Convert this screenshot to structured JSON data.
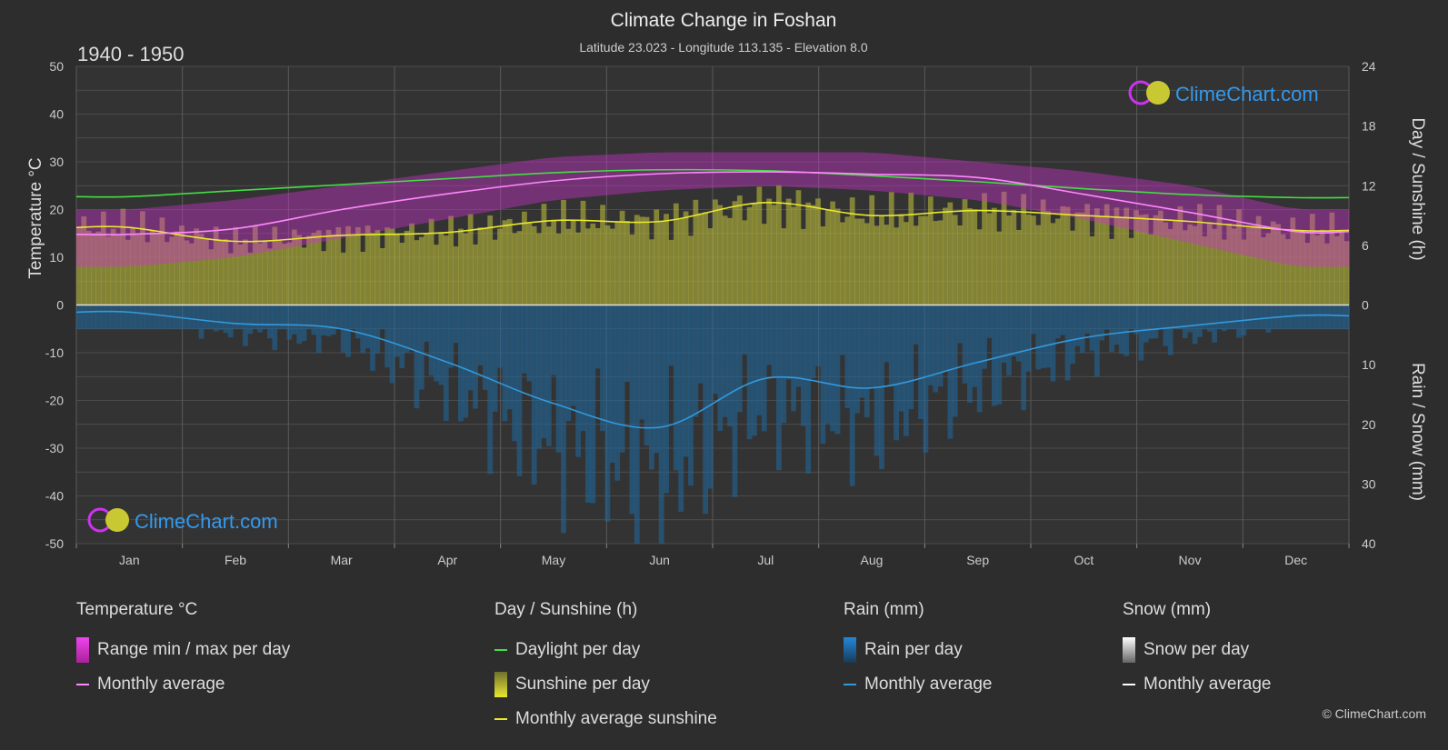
{
  "header": {
    "title": "Climate Change in Foshan",
    "subtitle": "Latitude 23.023 - Longitude 113.135 - Elevation 8.0",
    "period": "1940 - 1950"
  },
  "brand": {
    "logo_text": "ClimeChart.com",
    "copyright": "© ClimeChart.com"
  },
  "axes": {
    "left_label": "Temperature °C",
    "right_top_label": "Day / Sunshine (h)",
    "right_bottom_label": "Rain / Snow (mm)"
  },
  "legend": {
    "temperature": {
      "title": "Temperature °C",
      "range": "Range min / max per day",
      "avg": "Monthly average"
    },
    "sun": {
      "title": "Day / Sunshine (h)",
      "daylight": "Daylight per day",
      "sunshine": "Sunshine per day",
      "avg": "Monthly average sunshine"
    },
    "rain": {
      "title": "Rain (mm)",
      "per_day": "Rain per day",
      "avg": "Monthly average"
    },
    "snow": {
      "title": "Snow (mm)",
      "per_day": "Snow per day",
      "avg": "Monthly average"
    }
  },
  "colors": {
    "background": "#2d2d2d",
    "grid": "#555555",
    "daylight": "#44dd44",
    "sunshine_fill": "#b5b53a",
    "sunshine_avg": "#e8e830",
    "temp_range": "#cc33cc",
    "temp_avg": "#ff88ff",
    "rain_fill": "#1f6aa0",
    "rain_avg": "#3399dd",
    "snow_avg": "#ffffff",
    "logo_blue": "#3399ee"
  },
  "chart_data": {
    "type": "line",
    "categories": [
      "Jan",
      "Feb",
      "Mar",
      "Apr",
      "May",
      "Jun",
      "Jul",
      "Aug",
      "Sep",
      "Oct",
      "Nov",
      "Dec"
    ],
    "y_left": {
      "label": "Temperature °C",
      "min": -50,
      "max": 50,
      "ticks": [
        50,
        40,
        30,
        20,
        10,
        0,
        -10,
        -20,
        -30,
        -40,
        -50
      ]
    },
    "y_right_top": {
      "label": "Day / Sunshine (h)",
      "min": 0,
      "max": 24,
      "ticks": [
        24,
        18,
        12,
        6,
        0
      ]
    },
    "y_right_bottom": {
      "label": "Rain / Snow (mm)",
      "min": 0,
      "max": 40,
      "ticks": [
        0,
        10,
        20,
        30,
        40
      ]
    },
    "series": [
      {
        "name": "Daylight per day",
        "unit": "h",
        "values": [
          10.9,
          11.5,
          12.1,
          12.7,
          13.3,
          13.6,
          13.5,
          13.0,
          12.4,
          11.7,
          11.1,
          10.8
        ]
      },
      {
        "name": "Monthly average sunshine",
        "unit": "h",
        "values": [
          7.8,
          6.4,
          7.0,
          7.3,
          8.5,
          8.4,
          10.3,
          9.0,
          9.5,
          9.0,
          8.4,
          7.5
        ]
      },
      {
        "name": "Temperature monthly average",
        "unit": "°C",
        "values": [
          14.8,
          16.0,
          20.0,
          23.3,
          26.0,
          27.5,
          27.9,
          27.4,
          26.7,
          23.2,
          19.4,
          15.4
        ]
      },
      {
        "name": "Temperature daily max (avg)",
        "unit": "°C",
        "values": [
          20,
          22,
          25,
          28,
          31,
          32,
          32,
          32,
          30,
          28,
          25,
          20
        ]
      },
      {
        "name": "Temperature daily min (avg)",
        "unit": "°C",
        "values": [
          8,
          10,
          14,
          18,
          22,
          24,
          25,
          24,
          22,
          18,
          13,
          8
        ]
      },
      {
        "name": "Rain monthly average",
        "unit": "mm",
        "values": [
          1.2,
          3.1,
          4.0,
          9.6,
          16.5,
          20.5,
          12.3,
          13.9,
          9.6,
          5.5,
          3.5,
          1.8
        ]
      },
      {
        "name": "Snow monthly average",
        "unit": "mm",
        "values": [
          0,
          0,
          0,
          0,
          0,
          0,
          0,
          0,
          0,
          0,
          0,
          0
        ]
      }
    ],
    "grid": true,
    "legend_position": "bottom"
  }
}
